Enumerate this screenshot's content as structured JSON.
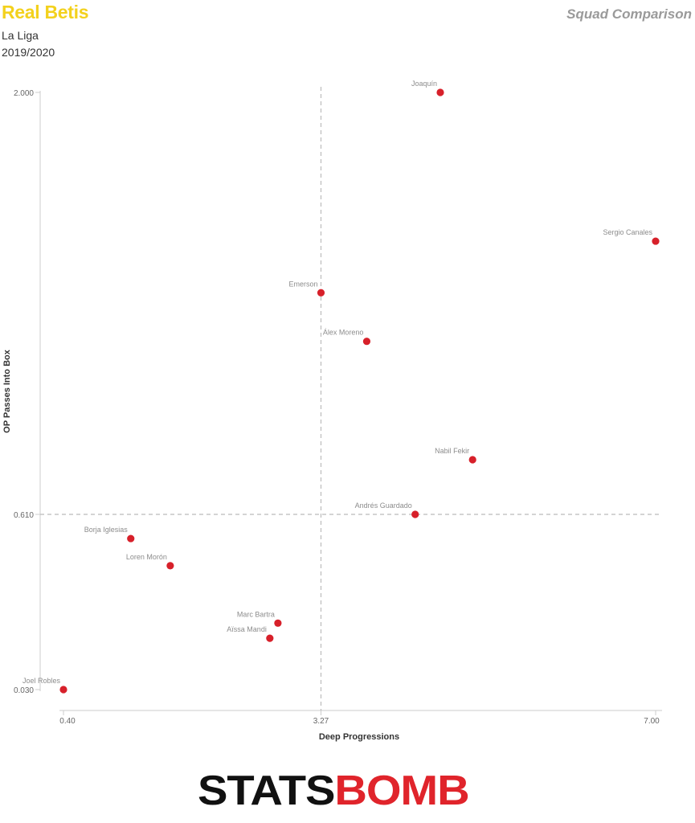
{
  "header": {
    "team": "Real Betis",
    "league": "La Liga",
    "season": "2019/2020",
    "comparison": "Squad Comparison"
  },
  "logo": {
    "part1": "STATS",
    "part2": "BOMB"
  },
  "colors": {
    "title": "#f3d11d",
    "point": "#d7202a",
    "logo_red": "#e0242b"
  },
  "chart_data": {
    "type": "scatter",
    "xlabel": "Deep Progressions",
    "ylabel": "OP Passes Into Box",
    "x_ticks": [
      "0.40",
      "3.27",
      "7.00"
    ],
    "y_ticks": [
      "2.000",
      "0.610",
      "0.030"
    ],
    "xlim": [
      0.4,
      7.0
    ],
    "ylim": [
      0.03,
      2.0
    ],
    "y_scale": "piecewise",
    "reference_lines": {
      "x": 3.27,
      "y": 0.61
    },
    "grid": false,
    "points": [
      {
        "label": "Joaquín",
        "x": 4.6,
        "y": 2.0
      },
      {
        "label": "Sergio Canales",
        "x": 7.0,
        "y": 1.51
      },
      {
        "label": "Emerson",
        "x": 3.27,
        "y": 1.34
      },
      {
        "label": "Álex Moreno",
        "x": 3.78,
        "y": 1.18
      },
      {
        "label": "Nabil Fekir",
        "x": 4.96,
        "y": 0.79
      },
      {
        "label": "Andrés Guardado",
        "x": 4.32,
        "y": 0.61
      },
      {
        "label": "Borja Iglesias",
        "x": 1.15,
        "y": 0.53
      },
      {
        "label": "Loren Morón",
        "x": 1.59,
        "y": 0.44
      },
      {
        "label": "Marc Bartra",
        "x": 2.79,
        "y": 0.25
      },
      {
        "label": "Aïssa Mandi",
        "x": 2.7,
        "y": 0.2
      },
      {
        "label": "Joel Robles",
        "x": 0.4,
        "y": 0.03
      }
    ]
  }
}
